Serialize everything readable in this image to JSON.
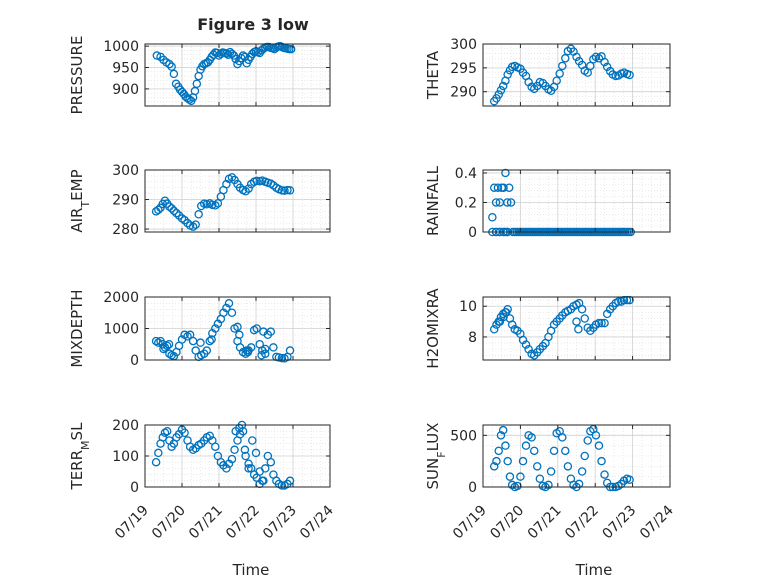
{
  "figure": {
    "title": "Figure 3 low",
    "xlabel_left": "Time",
    "xlabel_right": "Time"
  },
  "chart_data": [
    {
      "type": "scatter",
      "ylabel": "PRESSURE",
      "xlim": [
        "07/19",
        "07/24"
      ],
      "ylim": [
        860,
        1005
      ],
      "yticks": [
        900,
        950,
        1000
      ],
      "x": [
        0.32,
        0.42,
        0.5,
        0.58,
        0.66,
        0.72,
        0.78,
        0.84,
        0.9,
        0.95,
        1.0,
        1.05,
        1.1,
        1.15,
        1.2,
        1.25,
        1.3,
        1.35,
        1.4,
        1.45,
        1.5,
        1.55,
        1.6,
        1.65,
        1.7,
        1.75,
        1.8,
        1.85,
        1.9,
        1.95,
        2.0,
        2.05,
        2.1,
        2.15,
        2.2,
        2.25,
        2.3,
        2.35,
        2.4,
        2.45,
        2.5,
        2.55,
        2.6,
        2.65,
        2.7,
        2.75,
        2.8,
        2.85,
        2.9,
        2.95,
        3.0,
        3.05,
        3.1,
        3.15,
        3.2,
        3.25,
        3.3,
        3.35,
        3.4,
        3.45,
        3.5,
        3.55,
        3.6,
        3.65,
        3.7,
        3.75,
        3.8,
        3.85,
        3.9,
        3.95
      ],
      "y": [
        978,
        975,
        968,
        962,
        958,
        952,
        935,
        912,
        905,
        898,
        893,
        888,
        882,
        878,
        875,
        872,
        880,
        895,
        912,
        930,
        945,
        953,
        958,
        960,
        962,
        968,
        975,
        980,
        985,
        984,
        978,
        982,
        985,
        984,
        983,
        980,
        986,
        982,
        978,
        970,
        958,
        965,
        972,
        978,
        975,
        960,
        968,
        975,
        982,
        986,
        988,
        986,
        984,
        990,
        994,
        997,
        998,
        998,
        996,
        995,
        993,
        997,
        999,
        1000,
        998,
        996,
        995,
        994,
        993,
        993
      ]
    },
    {
      "type": "scatter",
      "ylabel": "THETA",
      "xlim": [
        "07/19",
        "07/24"
      ],
      "ylim": [
        287,
        300
      ],
      "yticks": [
        290,
        295,
        300
      ],
      "x": [
        0.3,
        0.36,
        0.42,
        0.48,
        0.54,
        0.6,
        0.66,
        0.72,
        0.78,
        0.85,
        0.92,
        1.0,
        1.07,
        1.15,
        1.22,
        1.3,
        1.37,
        1.45,
        1.52,
        1.6,
        1.67,
        1.75,
        1.82,
        1.9,
        1.97,
        2.05,
        2.12,
        2.2,
        2.27,
        2.35,
        2.42,
        2.5,
        2.57,
        2.65,
        2.72,
        2.8,
        2.87,
        2.95,
        3.02,
        3.1,
        3.17,
        3.25,
        3.32,
        3.4,
        3.47,
        3.55,
        3.62,
        3.7,
        3.77,
        3.85,
        3.92
      ],
      "y": [
        288,
        288.6,
        289.4,
        290.3,
        291.2,
        292.3,
        293.6,
        294.5,
        295.2,
        295.4,
        295.1,
        294.8,
        294.0,
        293.3,
        292.0,
        291.0,
        290.6,
        291.2,
        292.0,
        291.8,
        291.2,
        290.5,
        290.2,
        291.0,
        292.3,
        293.8,
        295.4,
        297.0,
        298.5,
        299.0,
        298.4,
        297.3,
        296.4,
        295.6,
        294.4,
        294.0,
        295.4,
        296.8,
        297.3,
        297.0,
        297.4,
        296.2,
        295.2,
        294.3,
        293.6,
        293.3,
        293.4,
        293.8,
        294.0,
        293.7,
        293.5
      ]
    },
    {
      "type": "scatter",
      "ylabel": "AIR_TEMP",
      "xlim": [
        "07/19",
        "07/24"
      ],
      "ylim": [
        279,
        300
      ],
      "yticks": [
        280,
        290,
        300
      ],
      "x": [
        0.3,
        0.36,
        0.42,
        0.48,
        0.54,
        0.6,
        0.66,
        0.72,
        0.78,
        0.85,
        0.92,
        1.0,
        1.07,
        1.15,
        1.22,
        1.3,
        1.37,
        1.45,
        1.52,
        1.6,
        1.67,
        1.75,
        1.82,
        1.9,
        1.97,
        2.05,
        2.12,
        2.2,
        2.27,
        2.35,
        2.42,
        2.5,
        2.57,
        2.65,
        2.72,
        2.8,
        2.87,
        2.95,
        3.02,
        3.1,
        3.17,
        3.25,
        3.32,
        3.4,
        3.47,
        3.55,
        3.62,
        3.7,
        3.77,
        3.85,
        3.92
      ],
      "y": [
        286,
        286.5,
        287.2,
        288.5,
        289.6,
        288.6,
        287.6,
        287.0,
        286.2,
        285.4,
        284.6,
        283.6,
        283.0,
        282.0,
        281.2,
        280.8,
        281.5,
        285.0,
        287.8,
        288.6,
        288.4,
        288.7,
        288.2,
        288.0,
        288.7,
        291.0,
        293.2,
        295.2,
        297.0,
        297.5,
        296.6,
        295.2,
        294.0,
        293.2,
        292.8,
        293.7,
        295.2,
        296.0,
        296.3,
        296.2,
        296.4,
        296.0,
        295.7,
        295.4,
        294.8,
        294.0,
        293.5,
        293.1,
        293.0,
        293.2,
        293.1
      ]
    },
    {
      "type": "scatter",
      "ylabel": "RAINFALL",
      "xlim": [
        "07/19",
        "07/24"
      ],
      "ylim": [
        0,
        0.42
      ],
      "yticks": [
        0,
        0.2,
        0.4
      ],
      "x": [
        0.25,
        0.3,
        0.35,
        0.4,
        0.45,
        0.5,
        0.55,
        0.6,
        0.65,
        0.7,
        0.75,
        0.8,
        0.85,
        0.9,
        0.95,
        1.0,
        1.05,
        1.1,
        1.15,
        1.2,
        1.25,
        1.3,
        1.35,
        1.4,
        1.45,
        1.5,
        1.55,
        1.6,
        1.65,
        1.7,
        1.75,
        1.8,
        1.85,
        1.9,
        1.95,
        2.0,
        2.05,
        2.1,
        2.15,
        2.2,
        2.25,
        2.3,
        2.35,
        2.4,
        2.45,
        2.5,
        2.55,
        2.6,
        2.65,
        2.7,
        2.75,
        2.8,
        2.85,
        2.9,
        2.95,
        3.0,
        3.05,
        3.1,
        3.15,
        3.2,
        3.25,
        3.3,
        3.35,
        3.4,
        3.45,
        3.5,
        3.55,
        3.6,
        3.65,
        3.7,
        3.75,
        3.8,
        3.85,
        3.9,
        3.95,
        0.25,
        0.35,
        0.35,
        0.45,
        0.45,
        0.55,
        0.55,
        0.6,
        0.65,
        0.65
      ],
      "y": [
        0.1,
        0.3,
        0.2,
        0.3,
        0.2,
        0.3,
        0.3,
        0.4,
        0.2,
        0.3,
        0.2,
        0,
        0,
        0,
        0,
        0,
        0,
        0,
        0,
        0,
        0,
        0,
        0,
        0,
        0,
        0,
        0,
        0,
        0,
        0,
        0,
        0,
        0,
        0,
        0,
        0,
        0,
        0,
        0,
        0,
        0,
        0,
        0,
        0,
        0,
        0,
        0,
        0,
        0,
        0,
        0,
        0,
        0,
        0,
        0,
        0,
        0,
        0,
        0,
        0,
        0,
        0,
        0,
        0,
        0,
        0,
        0,
        0,
        0,
        0,
        0,
        0,
        0,
        0,
        0,
        0,
        0,
        0,
        0,
        0,
        0,
        0,
        0,
        0,
        0
      ]
    },
    {
      "type": "scatter",
      "ylabel": "MIXDEPTH",
      "xlim": [
        "07/19",
        "07/24"
      ],
      "ylim": [
        0,
        2000
      ],
      "yticks": [
        0,
        1000,
        2000
      ],
      "x": [
        0.3,
        0.36,
        0.42,
        0.48,
        0.54,
        0.6,
        0.66,
        0.72,
        0.78,
        0.85,
        0.92,
        1.0,
        1.07,
        1.15,
        1.22,
        1.3,
        1.37,
        1.45,
        1.52,
        1.6,
        1.67,
        1.75,
        1.82,
        1.9,
        1.97,
        2.05,
        2.12,
        2.2,
        2.27,
        2.35,
        2.42,
        2.5,
        2.57,
        2.65,
        2.72,
        2.8,
        2.87,
        2.95,
        3.02,
        3.1,
        3.17,
        3.25,
        3.32,
        3.4,
        3.47,
        3.55,
        3.62,
        3.7,
        3.77,
        3.85,
        3.92,
        0.5,
        0.65,
        1.5,
        1.8,
        2.5,
        2.55,
        2.75,
        2.78,
        3.15,
        3.2,
        3.25
      ],
      "y": [
        600,
        550,
        600,
        500,
        400,
        450,
        200,
        150,
        120,
        250,
        450,
        650,
        800,
        750,
        800,
        600,
        300,
        100,
        150,
        200,
        300,
        600,
        850,
        1000,
        1150,
        1300,
        1500,
        1650,
        1800,
        1500,
        1000,
        600,
        400,
        250,
        200,
        300,
        400,
        950,
        1000,
        500,
        300,
        200,
        800,
        900,
        400,
        100,
        80,
        60,
        50,
        100,
        300,
        350,
        500,
        550,
        650,
        1050,
        800,
        300,
        250,
        150,
        900,
        350
      ]
    },
    {
      "type": "scatter",
      "ylabel": "H2OMIXRA",
      "xlim": [
        "07/19",
        "07/24"
      ],
      "ylim": [
        6.5,
        10.6
      ],
      "yticks": [
        8,
        10
      ],
      "x": [
        0.3,
        0.36,
        0.42,
        0.48,
        0.54,
        0.6,
        0.66,
        0.72,
        0.78,
        0.85,
        0.92,
        1.0,
        1.07,
        1.15,
        1.22,
        1.3,
        1.37,
        1.45,
        1.52,
        1.6,
        1.67,
        1.75,
        1.82,
        1.9,
        1.97,
        2.05,
        2.12,
        2.2,
        2.27,
        2.35,
        2.42,
        2.5,
        2.57,
        2.65,
        2.72,
        2.8,
        2.87,
        2.95,
        3.02,
        3.1,
        3.17,
        3.25,
        3.32,
        3.4,
        3.47,
        3.55,
        3.62,
        3.7,
        3.77,
        3.85,
        3.92,
        0.45,
        0.55,
        0.62,
        2.5,
        2.55
      ],
      "y": [
        8.5,
        8.8,
        9.0,
        9.3,
        9.5,
        9.6,
        9.8,
        9.2,
        8.8,
        8.5,
        8.4,
        8.2,
        7.8,
        7.5,
        7.2,
        6.9,
        6.8,
        7.0,
        7.2,
        7.4,
        7.6,
        8.0,
        8.4,
        8.8,
        9.0,
        9.2,
        9.4,
        9.6,
        9.7,
        9.8,
        10.0,
        10.1,
        10.2,
        9.8,
        9.2,
        8.6,
        8.4,
        8.6,
        8.8,
        8.9,
        8.9,
        8.9,
        9.5,
        9.8,
        10.0,
        10.2,
        10.3,
        10.3,
        10.4,
        10.4,
        10.4,
        9.0,
        9.3,
        9.6,
        9.0,
        8.5
      ]
    },
    {
      "type": "scatter",
      "ylabel": "TERR_MSL",
      "xlim": [
        "07/19",
        "07/24"
      ],
      "ylim": [
        0,
        200
      ],
      "yticks": [
        0,
        100,
        200
      ],
      "x": [
        0.3,
        0.36,
        0.42,
        0.48,
        0.54,
        0.6,
        0.66,
        0.72,
        0.78,
        0.85,
        0.92,
        1.0,
        1.07,
        1.15,
        1.22,
        1.3,
        1.37,
        1.45,
        1.52,
        1.6,
        1.67,
        1.75,
        1.82,
        1.9,
        1.97,
        2.05,
        2.12,
        2.2,
        2.27,
        2.35,
        2.42,
        2.5,
        2.57,
        2.65,
        2.72,
        2.8,
        2.87,
        2.95,
        3.02,
        3.1,
        3.17,
        3.25,
        3.32,
        3.4,
        3.47,
        3.55,
        3.62,
        3.7,
        3.77,
        3.85,
        3.92,
        2.45,
        2.55,
        2.62,
        2.7,
        2.8,
        2.9,
        3.0,
        3.1,
        3.2
      ],
      "y": [
        80,
        110,
        140,
        160,
        175,
        180,
        150,
        130,
        140,
        160,
        170,
        185,
        175,
        150,
        130,
        120,
        125,
        135,
        140,
        150,
        160,
        165,
        150,
        130,
        100,
        80,
        70,
        60,
        75,
        90,
        120,
        150,
        170,
        180,
        100,
        75,
        60,
        40,
        30,
        10,
        20,
        60,
        100,
        80,
        40,
        20,
        10,
        5,
        5,
        10,
        20,
        180,
        190,
        200,
        120,
        60,
        150,
        110,
        50,
        20
      ]
    },
    {
      "type": "scatter",
      "ylabel": "SUN_FLUX",
      "xlim": [
        "07/19",
        "07/24"
      ],
      "ylim": [
        0,
        600
      ],
      "yticks": [
        0,
        500
      ],
      "x": [
        0.3,
        0.36,
        0.42,
        0.48,
        0.54,
        0.6,
        0.66,
        0.72,
        0.78,
        0.85,
        0.92,
        1.0,
        1.07,
        1.15,
        1.22,
        1.3,
        1.37,
        1.45,
        1.52,
        1.6,
        1.67,
        1.75,
        1.82,
        1.9,
        1.97,
        2.05,
        2.12,
        2.2,
        2.27,
        2.35,
        2.42,
        2.5,
        2.57,
        2.65,
        2.72,
        2.8,
        2.87,
        2.95,
        3.02,
        3.1,
        3.17,
        3.25,
        3.32,
        3.4,
        3.47,
        3.55,
        3.62,
        3.7,
        3.77,
        3.85,
        3.92
      ],
      "y": [
        200,
        250,
        350,
        500,
        550,
        400,
        250,
        100,
        20,
        0,
        10,
        100,
        250,
        400,
        500,
        480,
        350,
        200,
        80,
        10,
        0,
        20,
        150,
        350,
        520,
        540,
        480,
        350,
        200,
        80,
        20,
        0,
        30,
        150,
        300,
        450,
        540,
        560,
        500,
        400,
        250,
        120,
        40,
        0,
        0,
        0,
        10,
        30,
        60,
        80,
        70
      ]
    }
  ]
}
